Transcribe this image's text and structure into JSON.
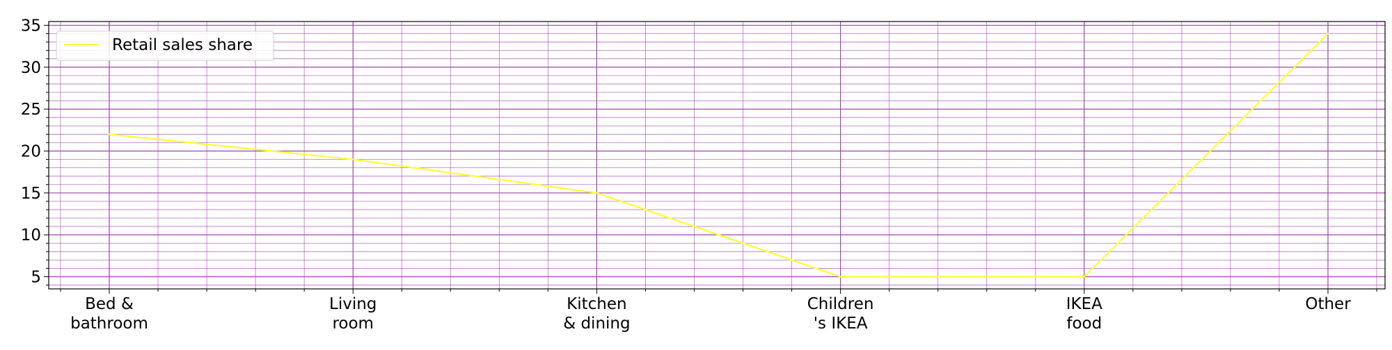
{
  "chart_data": {
    "type": "line",
    "categories": [
      [
        "Bed &",
        "bathroom"
      ],
      [
        "Living",
        "room"
      ],
      [
        "Kitchen",
        "& dining"
      ],
      [
        "Children",
        "'s IKEA"
      ],
      [
        "IKEA",
        "food"
      ],
      [
        "Other"
      ]
    ],
    "series": [
      {
        "name": "Retail sales share",
        "values": [
          22,
          19,
          15,
          5,
          5,
          34
        ],
        "color": "#ffff33"
      }
    ],
    "ylim": [
      3.55,
      35.45
    ],
    "yticks": [
      5,
      10,
      15,
      20,
      25,
      30,
      35
    ],
    "y_minor_step": 1,
    "x_minor_per_category": 5,
    "grid": true,
    "grid_color": "#a040b0",
    "legend_position": "top-left"
  }
}
